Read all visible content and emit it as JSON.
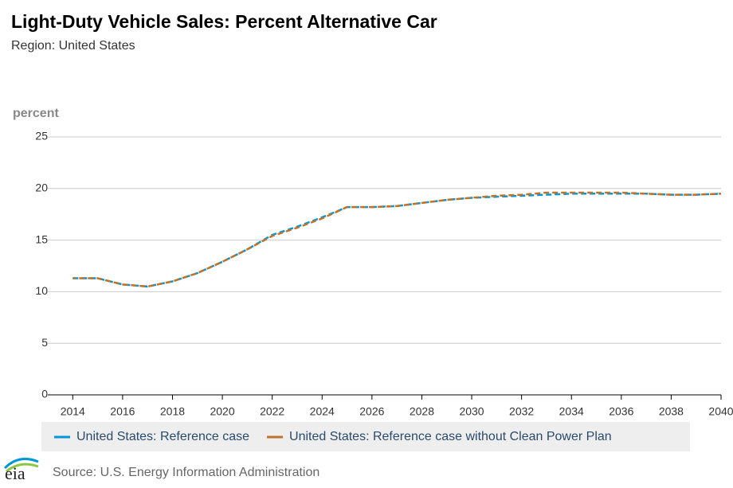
{
  "chart_data": {
    "type": "line",
    "title": "Light-Duty Vehicle Sales: Percent Alternative Car",
    "subtitle": "Region: United States",
    "y_label": "percent",
    "x": [
      2014,
      2015,
      2016,
      2017,
      2018,
      2019,
      2020,
      2021,
      2022,
      2023,
      2024,
      2025,
      2026,
      2027,
      2028,
      2029,
      2030,
      2031,
      2032,
      2033,
      2034,
      2035,
      2036,
      2037,
      2038,
      2039,
      2040
    ],
    "series": [
      {
        "name": "United States: Reference case",
        "color": "#0096d7",
        "values": [
          11.3,
          11.3,
          10.7,
          10.5,
          11.0,
          11.8,
          12.9,
          14.1,
          15.5,
          16.3,
          17.2,
          18.2,
          18.2,
          18.3,
          18.6,
          18.9,
          19.1,
          19.2,
          19.3,
          19.4,
          19.5,
          19.5,
          19.5,
          19.5,
          19.4,
          19.4,
          19.5
        ]
      },
      {
        "name": "United States: Reference case without Clean Power Plan",
        "color": "#bd732a",
        "values": [
          11.3,
          11.3,
          10.7,
          10.5,
          11.0,
          11.8,
          12.9,
          14.1,
          15.4,
          16.2,
          17.1,
          18.2,
          18.2,
          18.3,
          18.6,
          18.9,
          19.1,
          19.3,
          19.4,
          19.6,
          19.6,
          19.6,
          19.6,
          19.5,
          19.4,
          19.4,
          19.5
        ]
      }
    ],
    "xlim": [
      2013,
      2040
    ],
    "xticks": [
      2014,
      2016,
      2018,
      2020,
      2022,
      2024,
      2026,
      2028,
      2030,
      2032,
      2034,
      2036,
      2038,
      2040
    ],
    "ylim": [
      0,
      25
    ],
    "yticks": [
      0,
      5,
      10,
      15,
      20,
      25
    ],
    "grid": true,
    "legend": "bottom",
    "source": "Source: U.S. Energy Information Administration",
    "logo": "eia"
  }
}
